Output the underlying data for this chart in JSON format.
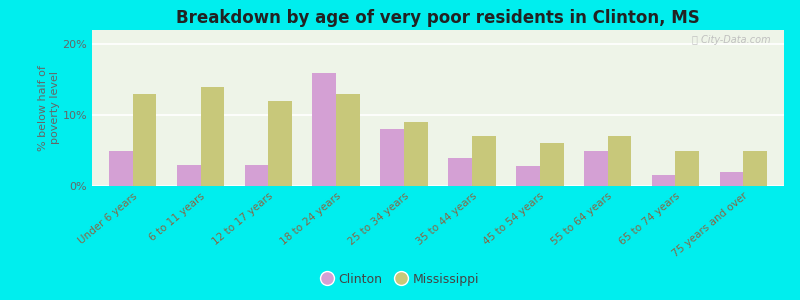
{
  "categories": [
    "Under 6 years",
    "6 to 11 years",
    "12 to 17 years",
    "18 to 24 years",
    "25 to 34 years",
    "35 to 44 years",
    "45 to 54 years",
    "55 to 64 years",
    "65 to 74 years",
    "75 years and over"
  ],
  "clinton": [
    5.0,
    3.0,
    3.0,
    16.0,
    8.0,
    4.0,
    2.8,
    5.0,
    1.5,
    2.0
  ],
  "mississippi": [
    13.0,
    14.0,
    12.0,
    13.0,
    9.0,
    7.0,
    6.0,
    7.0,
    5.0,
    5.0
  ],
  "clinton_color": "#d4a0d4",
  "mississippi_color": "#c8c87a",
  "background_outer": "#00eeee",
  "background_plot": "#eef4e8",
  "title": "Breakdown by age of very poor residents in Clinton, MS",
  "ylabel": "% below half of\npoverty level",
  "ylim": [
    0,
    22
  ],
  "yticks": [
    0,
    10,
    20
  ],
  "ytick_labels": [
    "0%",
    "10%",
    "20%"
  ],
  "title_fontsize": 12,
  "axis_fontsize": 8,
  "bar_width": 0.35,
  "legend_clinton": "Clinton",
  "legend_mississippi": "Mississippi",
  "tick_color": "#886644",
  "ylabel_color": "#666666",
  "ytick_color": "#666666"
}
